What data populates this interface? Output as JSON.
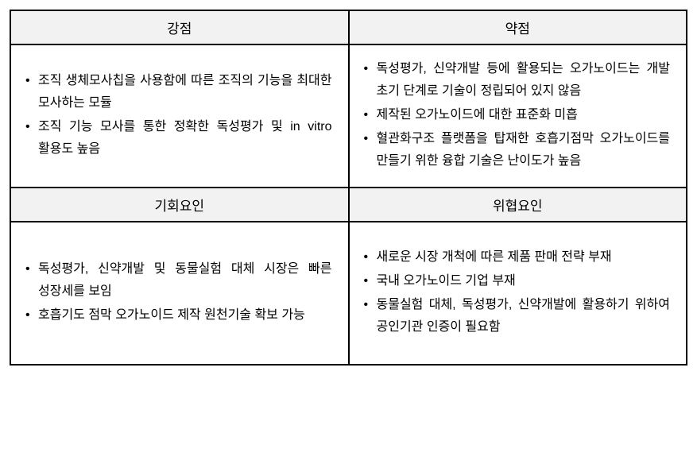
{
  "swot": {
    "headers": {
      "strengths": "강점",
      "weaknesses": "약점",
      "opportunities": "기회요인",
      "threats": "위협요인"
    },
    "strengths": {
      "items": [
        "조직 생체모사칩을 사용함에 따른 조직의 기능을 최대한 모사하는 모듈",
        "조직 기능 모사를 통한 정확한 독성평가 및 in vitro 활용도 높음"
      ]
    },
    "weaknesses": {
      "items": [
        "독성평가, 신약개발 등에 활용되는 오가노이드는 개발 초기 단계로 기술이 정립되어 있지 않음",
        "제작된 오가노이드에 대한 표준화 미흡",
        "혈관화구조 플랫폼을 탑재한 호흡기점막 오가노이드를 만들기 위한 융합 기술은 난이도가 높음"
      ]
    },
    "opportunities": {
      "items": [
        "독성평가, 신약개발 및 동물실험 대체 시장은 빠른 성장세를 보임",
        "호흡기도 점막 오가노이드 제작 원천기술 확보 가능"
      ]
    },
    "threats": {
      "items": [
        "새로운 시장 개척에 따른 제품 판매 전략 부재",
        "국내 오가노이드 기업 부재",
        "동물실험 대체, 독성평가, 신약개발에 활용하기 위하여 공인기관 인증이 필요함"
      ]
    }
  },
  "style": {
    "table_border_color": "#000000",
    "header_bg": "#f2f2f2",
    "body_bg": "#ffffff",
    "font_size_header": 17,
    "font_size_body": 16,
    "line_height": 1.75
  }
}
